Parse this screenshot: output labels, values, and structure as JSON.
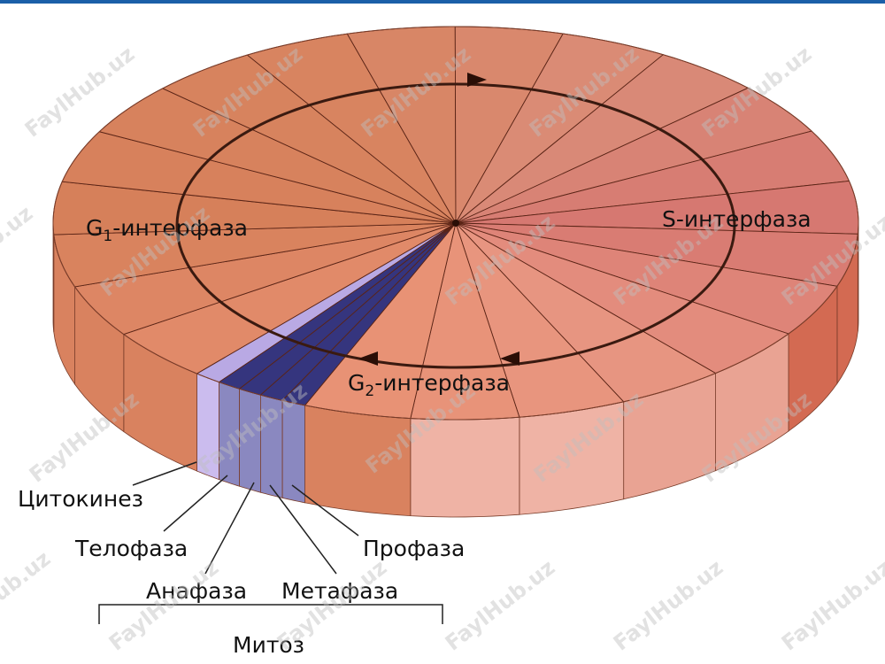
{
  "title": {
    "g1": {
      "main": "G",
      "sub": "1",
      "rest": "-интерфаза"
    },
    "s": "S-интерфаза",
    "g2": {
      "main": "G",
      "sub": "2",
      "rest": "-интерфаза"
    }
  },
  "mitosis_phases": [
    "Цитокинез",
    "Телофаза",
    "Анафаза",
    "Метафаза",
    "Профаза"
  ],
  "mitosis": "Митоз",
  "watermark": "FaylHub.uz"
}
